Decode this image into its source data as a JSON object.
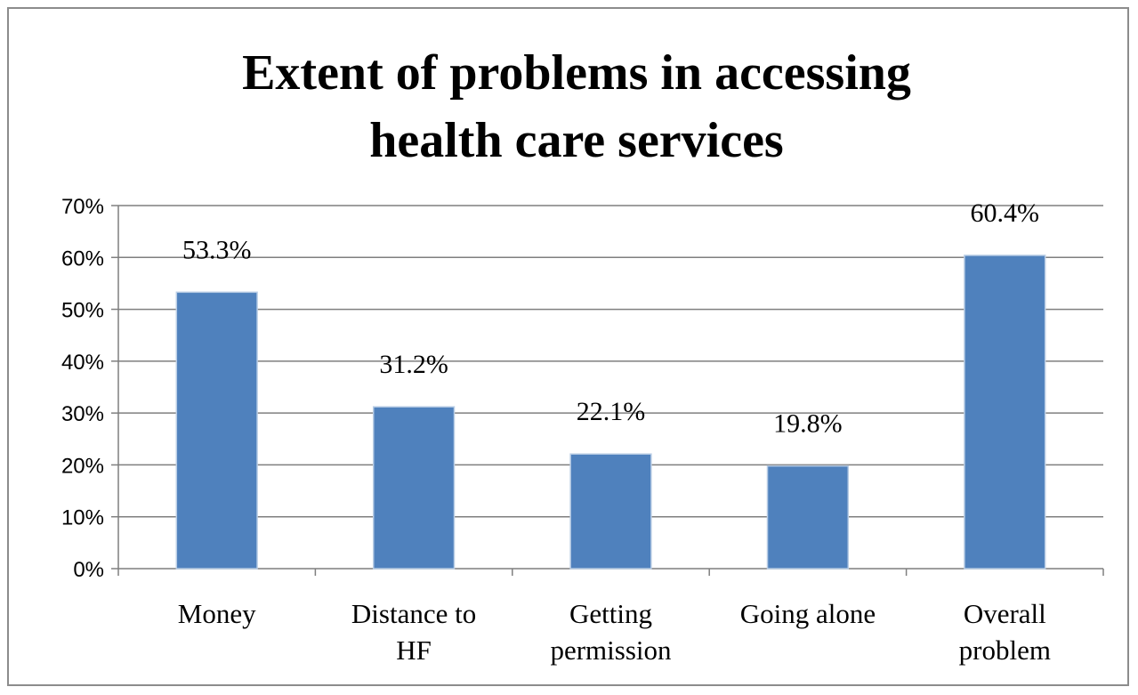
{
  "chart_data": {
    "type": "bar",
    "title_lines": [
      "Extent of problems in accessing",
      "health care services"
    ],
    "categories": [
      [
        "Money"
      ],
      [
        "Distance to",
        "HF"
      ],
      [
        "Getting",
        "permission"
      ],
      [
        "Going alone"
      ],
      [
        "Overall",
        "problem"
      ]
    ],
    "values": [
      53.3,
      31.2,
      22.1,
      19.8,
      60.4
    ],
    "value_labels": [
      "53.3%",
      "31.2%",
      "22.1%",
      "19.8%",
      "60.4%"
    ],
    "y_ticks": [
      "0%",
      "10%",
      "20%",
      "30%",
      "40%",
      "50%",
      "60%",
      "70%"
    ],
    "ylim": [
      0,
      70
    ],
    "xlabel": "",
    "ylabel": "",
    "grid": true,
    "legend": "none",
    "bar_color": "#4f81bd",
    "grid_color": "#7f7f7f",
    "axis_color": "#7f7f7f"
  }
}
